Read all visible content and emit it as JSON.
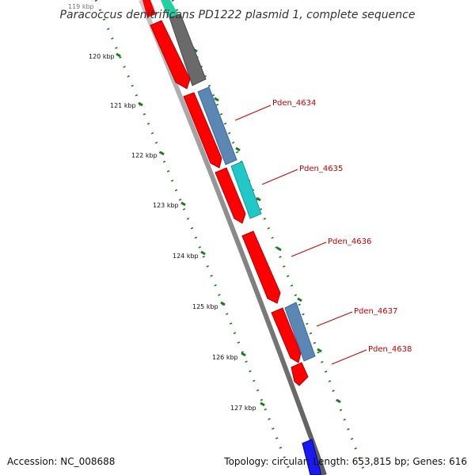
{
  "title": "Paracoccus denitrificans PD1222 plasmid 1, complete sequence",
  "accession_text": "Accession: NC_008688",
  "summary_text": "Topology: circular; Length: 653,815 bp; Genes: 616",
  "ticks": [
    {
      "label": "119 kbp"
    },
    {
      "label": "120 kbp"
    },
    {
      "label": "121 kbp"
    },
    {
      "label": "122 kbp"
    },
    {
      "label": "123 kbp"
    },
    {
      "label": "124 kbp"
    },
    {
      "label": "125 kbp"
    },
    {
      "label": "126 kbp"
    },
    {
      "label": "127 kbp"
    }
  ],
  "gene_labels": [
    {
      "name": "Pden_4634"
    },
    {
      "name": "Pden_4635"
    },
    {
      "name": "Pden_4636"
    },
    {
      "name": "Pden_4637"
    },
    {
      "name": "Pden_4638"
    }
  ],
  "colors": {
    "backbone": "#8a8a8a",
    "cds": "#ff0000",
    "cds_dark": "#b80000",
    "gene_steelblue": "#5b87b5",
    "gene_teal": "#22c8c8",
    "gene_grey": "#6a6a6a",
    "gene_green": "#20d0a0",
    "gene_blue": "#1a1aee",
    "tick_green": "#1a7a1a",
    "label_red": "#cc0000"
  }
}
